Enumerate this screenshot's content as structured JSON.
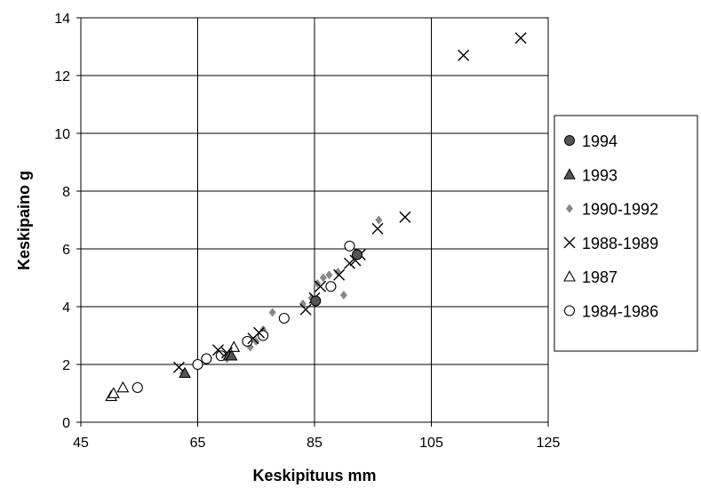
{
  "chart_data": {
    "type": "scatter",
    "xlabel": "Keskipituus mm",
    "ylabel": "Keskipaino g",
    "xlim": [
      45,
      125
    ],
    "ylim": [
      0,
      14
    ],
    "x_ticks": [
      45,
      65,
      85,
      105,
      125
    ],
    "y_ticks": [
      0,
      2,
      4,
      6,
      8,
      10,
      12,
      14
    ],
    "grid": true,
    "legend_position": "right",
    "series": [
      {
        "name": "1994",
        "marker": "filled-circle",
        "color": "#555555",
        "x": [
          85.2,
          92.3
        ],
        "y": [
          4.2,
          5.8
        ]
      },
      {
        "name": "1993",
        "marker": "filled-triangle",
        "color": "#555555",
        "x": [
          62.8,
          70.3,
          70.8
        ],
        "y": [
          1.7,
          2.3,
          2.3
        ]
      },
      {
        "name": "1990-1992",
        "marker": "diamond",
        "color": "#888888",
        "x": [
          62.5,
          70.0,
          74.0,
          75.0,
          76.2,
          77.8,
          83.0,
          84.5,
          85.5,
          86.5,
          87.5,
          89.0,
          90.0,
          96.0
        ],
        "y": [
          1.7,
          2.2,
          2.6,
          2.8,
          3.2,
          3.8,
          4.1,
          4.3,
          4.8,
          5.0,
          5.1,
          5.2,
          4.4,
          7.0
        ]
      },
      {
        "name": "1988-1989",
        "marker": "x",
        "color": "#000000",
        "x": [
          61.8,
          68.5,
          70.0,
          74.5,
          75.5,
          83.5,
          85.0,
          86.0,
          89.2,
          91.0,
          92.0,
          92.8,
          95.8,
          100.5,
          110.5,
          120.3
        ],
        "y": [
          1.9,
          2.5,
          2.4,
          2.9,
          3.1,
          3.9,
          4.3,
          4.7,
          5.1,
          5.5,
          5.6,
          5.8,
          6.7,
          7.1,
          12.7,
          13.3
        ]
      },
      {
        "name": "1987",
        "marker": "open-triangle",
        "color": "#000000",
        "x": [
          50.2,
          50.6,
          52.2,
          71.2
        ],
        "y": [
          0.9,
          1.0,
          1.2,
          2.6
        ]
      },
      {
        "name": "1984-1986",
        "marker": "open-circle",
        "color": "#000000",
        "x": [
          54.7,
          65.0,
          66.5,
          69.0,
          73.5,
          76.2,
          79.8,
          87.8,
          91.0
        ],
        "y": [
          1.2,
          2.0,
          2.2,
          2.3,
          2.8,
          3.0,
          3.6,
          4.7,
          6.1
        ]
      }
    ]
  }
}
